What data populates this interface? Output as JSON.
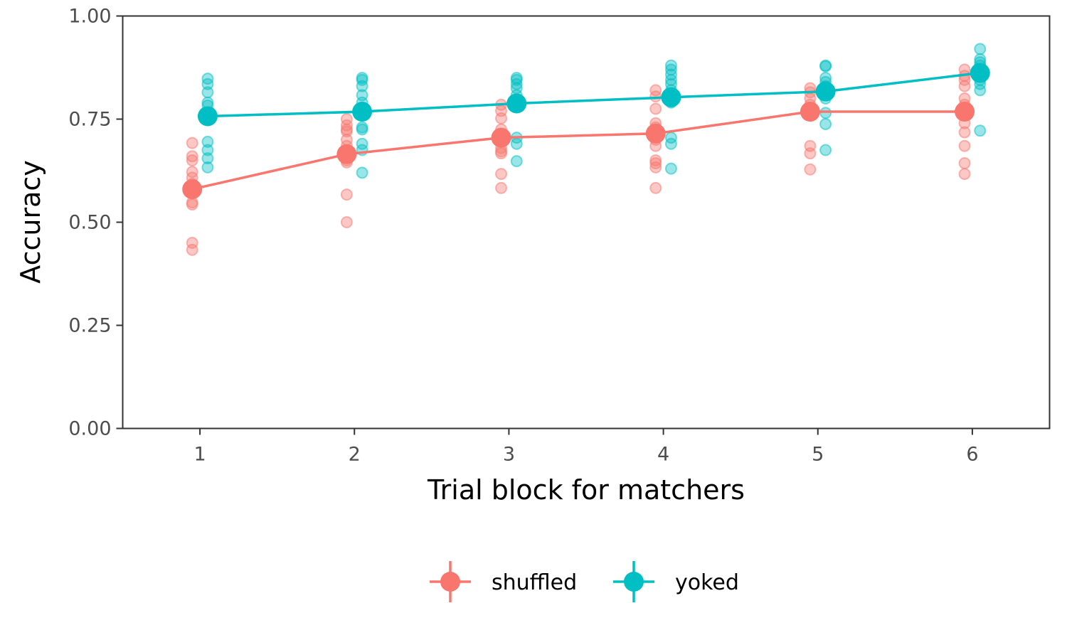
{
  "chart_data": {
    "type": "scatter",
    "xlabel": "Trial block for matchers",
    "ylabel": "Accuracy",
    "xlim": [
      0.5,
      6.5
    ],
    "ylim": [
      0,
      1
    ],
    "x_ticks": [
      1,
      2,
      3,
      4,
      5,
      6
    ],
    "x_tick_labels": [
      "1",
      "2",
      "3",
      "4",
      "5",
      "6"
    ],
    "y_ticks": [
      0,
      0.25,
      0.5,
      0.75,
      1
    ],
    "y_tick_labels": [
      "0.00",
      "0.25",
      "0.50",
      "0.75",
      "1.00"
    ],
    "grid": false,
    "legend_position": "bottom",
    "series": [
      {
        "name": "shuffled",
        "color": "#F8766D",
        "dodge": -0.05,
        "means": [
          0.58,
          0.665,
          0.705,
          0.715,
          0.768,
          0.768
        ],
        "points": [
          [
            0.692,
            0.66,
            0.65,
            0.622,
            0.608,
            0.593,
            0.57,
            0.548,
            0.543,
            0.45,
            0.433
          ],
          [
            0.75,
            0.735,
            0.725,
            0.72,
            0.7,
            0.685,
            0.672,
            0.66,
            0.65,
            0.645,
            0.567,
            0.5
          ],
          [
            0.785,
            0.77,
            0.752,
            0.725,
            0.71,
            0.695,
            0.68,
            0.672,
            0.667,
            0.617,
            0.583
          ],
          [
            0.82,
            0.805,
            0.775,
            0.74,
            0.73,
            0.72,
            0.7,
            0.685,
            0.65,
            0.643,
            0.633,
            0.583
          ],
          [
            0.825,
            0.815,
            0.8,
            0.785,
            0.77,
            0.685,
            0.667,
            0.628
          ],
          [
            0.87,
            0.855,
            0.845,
            0.83,
            0.8,
            0.785,
            0.76,
            0.74,
            0.718,
            0.685,
            0.643,
            0.617
          ]
        ]
      },
      {
        "name": "yoked",
        "color": "#00BFC4",
        "dodge": 0.05,
        "means": [
          0.757,
          0.768,
          0.788,
          0.803,
          0.817,
          0.862
        ],
        "points": [
          [
            0.848,
            0.835,
            0.815,
            0.79,
            0.783,
            0.765,
            0.695,
            0.675,
            0.655,
            0.633
          ],
          [
            0.85,
            0.845,
            0.83,
            0.808,
            0.79,
            0.73,
            0.725,
            0.69,
            0.675,
            0.62
          ],
          [
            0.85,
            0.845,
            0.835,
            0.825,
            0.808,
            0.79,
            0.78,
            0.705,
            0.69,
            0.648
          ],
          [
            0.88,
            0.87,
            0.858,
            0.845,
            0.835,
            0.82,
            0.808,
            0.79,
            0.705,
            0.69,
            0.63
          ],
          [
            0.88,
            0.878,
            0.85,
            0.84,
            0.83,
            0.82,
            0.8,
            0.765,
            0.738,
            0.675
          ],
          [
            0.92,
            0.895,
            0.888,
            0.88,
            0.87,
            0.855,
            0.845,
            0.835,
            0.82,
            0.722
          ]
        ]
      }
    ]
  }
}
